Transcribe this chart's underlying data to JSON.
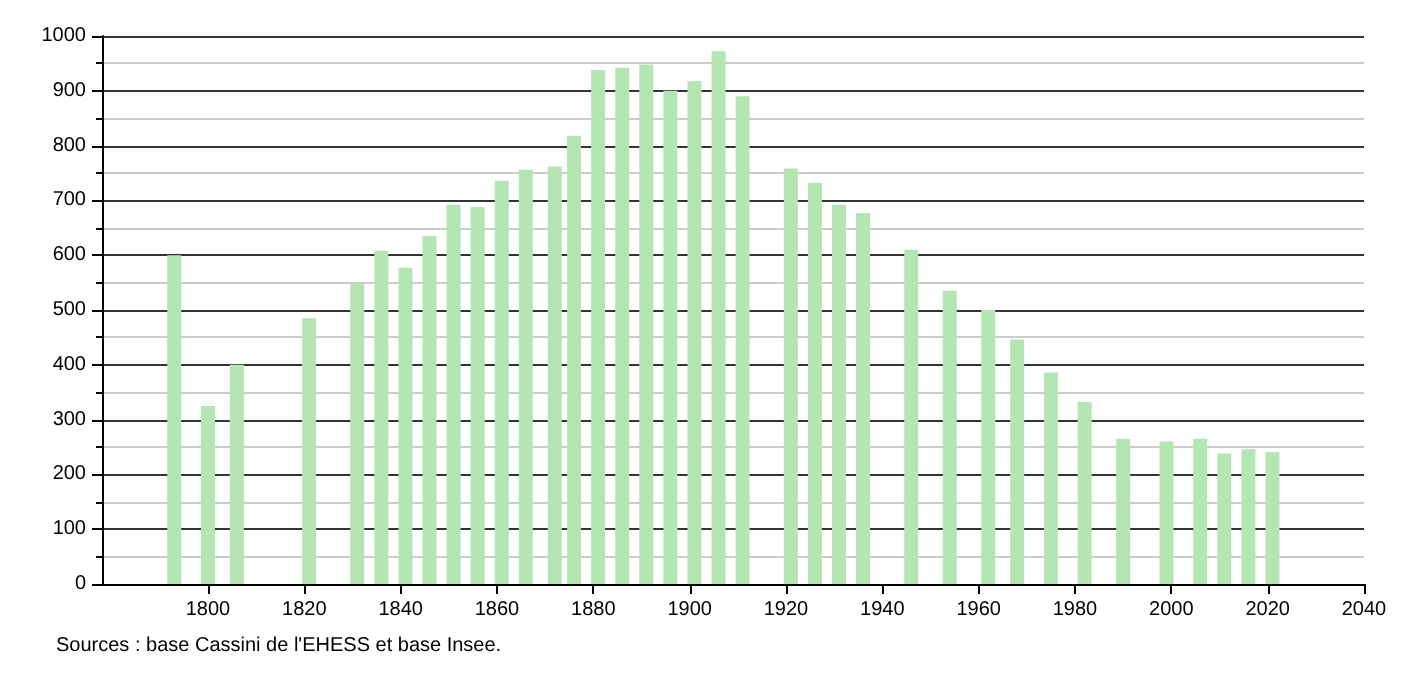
{
  "chart_data": {
    "type": "bar",
    "x": [
      1793,
      1800,
      1806,
      1821,
      1831,
      1836,
      1841,
      1846,
      1851,
      1856,
      1861,
      1866,
      1872,
      1876,
      1881,
      1886,
      1891,
      1896,
      1901,
      1906,
      1911,
      1921,
      1926,
      1931,
      1936,
      1946,
      1954,
      1962,
      1968,
      1975,
      1982,
      1990,
      1999,
      2006,
      2011,
      2016,
      2021
    ],
    "values": [
      600,
      325,
      400,
      485,
      548,
      608,
      577,
      635,
      692,
      688,
      736,
      756,
      762,
      818,
      938,
      942,
      948,
      900,
      918,
      972,
      890,
      758,
      732,
      692,
      677,
      610,
      535,
      500,
      446,
      386,
      332,
      265,
      260,
      265,
      238,
      246,
      241
    ],
    "color": "#b3e6b3",
    "xlim": [
      1778,
      2040
    ],
    "xticks": [
      1800,
      1820,
      1840,
      1860,
      1880,
      1900,
      1920,
      1940,
      1960,
      1980,
      2000,
      2020,
      2040
    ],
    "ylim": [
      0,
      1000
    ],
    "yticks": [
      0,
      100,
      200,
      300,
      400,
      500,
      600,
      700,
      800,
      900,
      1000
    ],
    "grid": "y",
    "annotations": [
      "Sources : base Cassini de l'EHESS et base Insee."
    ]
  }
}
